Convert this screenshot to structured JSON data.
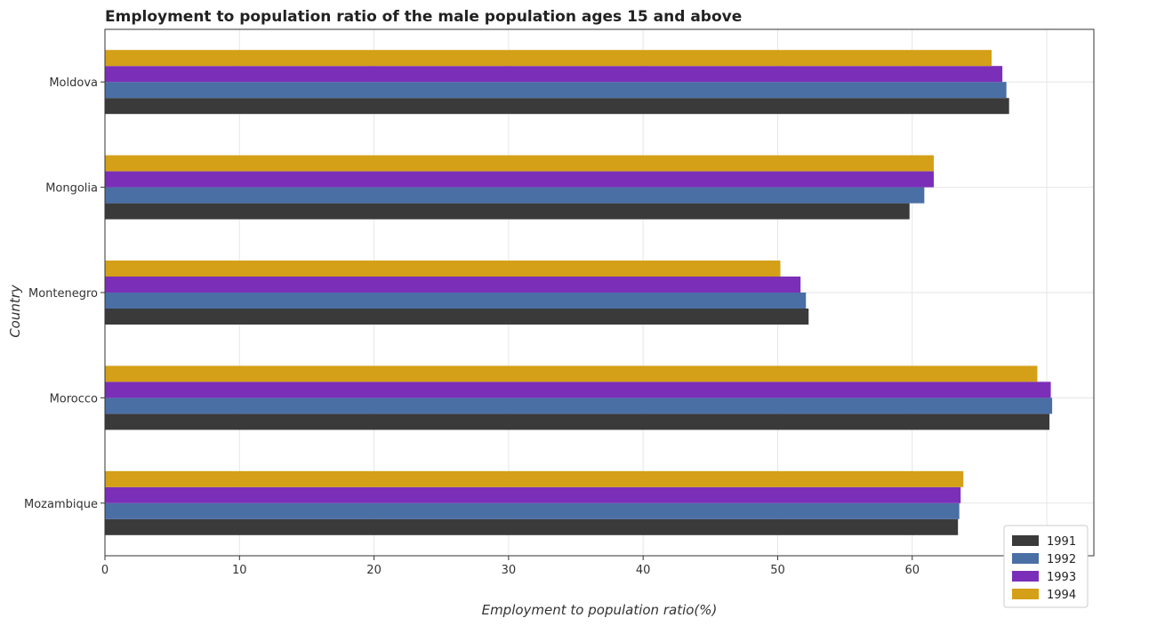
{
  "chart_data": {
    "type": "bar",
    "orientation": "horizontal",
    "title": "Employment to population ratio of the male population ages 15 and above",
    "xlabel": "Employment to population ratio(%)",
    "ylabel": "Country",
    "xlim": [
      0,
      73.5
    ],
    "xticks": [
      0,
      10,
      20,
      30,
      40,
      50,
      60,
      70
    ],
    "xtick_labels": [
      "0",
      "10",
      "20",
      "30",
      "40",
      "50",
      "60",
      "70"
    ],
    "grid": true,
    "legend_position": "bottom-right",
    "categories": [
      "Moldova",
      "Mongolia",
      "Montenegro",
      "Morocco",
      "Mozambique"
    ],
    "series": [
      {
        "name": "1991",
        "color": "#3a3a3a",
        "values": [
          67.2,
          59.8,
          52.3,
          70.2,
          63.4
        ]
      },
      {
        "name": "1992",
        "color": "#4a6fa5",
        "values": [
          67.0,
          60.9,
          52.1,
          70.4,
          63.5
        ]
      },
      {
        "name": "1993",
        "color": "#7b2fb8",
        "values": [
          66.7,
          61.6,
          51.7,
          70.3,
          63.6
        ]
      },
      {
        "name": "1994",
        "color": "#d4a017",
        "values": [
          65.9,
          61.6,
          50.2,
          69.3,
          63.8
        ]
      }
    ]
  }
}
